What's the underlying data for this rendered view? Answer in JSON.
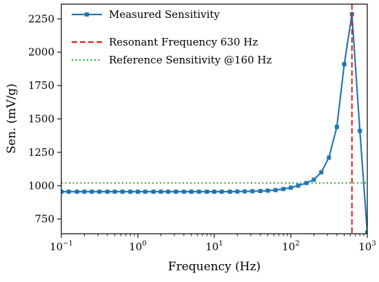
{
  "chart_data": {
    "type": "line",
    "xlabel": "Frequency (Hz)",
    "ylabel": "Sen. (mV/g)",
    "xscale": "log",
    "xlim": [
      0.1,
      1000
    ],
    "ylim": [
      640,
      2360
    ],
    "x_tick_values": [
      0.1,
      1,
      10,
      100,
      1000
    ],
    "x_tick_labels": [
      {
        "base": "10",
        "exp": "−1"
      },
      {
        "base": "10",
        "exp": "0"
      },
      {
        "base": "10",
        "exp": "1"
      },
      {
        "base": "10",
        "exp": "2"
      },
      {
        "base": "10",
        "exp": "3"
      }
    ],
    "y_ticks": [
      750,
      1000,
      1250,
      1500,
      1750,
      2000,
      2250
    ],
    "grid": false,
    "legend_position": "top-left",
    "series": [
      {
        "name": "Measured Sensitivity",
        "style": "line-with-square-markers",
        "color": "#1f77b4",
        "x": [
          0.1,
          0.125,
          0.16,
          0.2,
          0.25,
          0.315,
          0.4,
          0.5,
          0.63,
          0.8,
          1,
          1.25,
          1.6,
          2,
          2.5,
          3.15,
          4,
          5,
          6.3,
          8,
          10,
          12.5,
          16,
          20,
          25,
          31.5,
          40,
          50,
          63,
          80,
          100,
          125,
          160,
          200,
          250,
          315,
          400,
          500,
          630,
          800,
          1000
        ],
        "y": [
          955,
          955,
          955,
          955,
          955,
          955,
          955,
          955,
          955,
          955,
          955,
          955,
          955,
          955,
          955,
          955,
          955,
          955,
          955,
          955,
          955,
          955,
          955,
          956,
          957,
          958,
          960,
          963,
          967,
          975,
          985,
          1000,
          1020,
          1045,
          1100,
          1210,
          1440,
          1910,
          2285,
          1410,
          650
        ]
      },
      {
        "name": "Resonant Frequency 630 Hz",
        "style": "dashed-vertical",
        "color": "#e31a1c",
        "x_value": 630
      },
      {
        "name": "Reference Sensitivity @160 Hz",
        "style": "dotted-horizontal",
        "color": "#2ca02c",
        "y_value": 1020
      }
    ]
  }
}
